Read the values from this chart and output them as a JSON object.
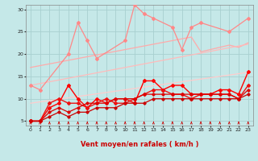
{
  "bg_color": "#c5e8e8",
  "grid_color": "#a8d0d0",
  "xlabel": "Vent moyen/en rafales ( km/h )",
  "xlim": [
    -0.5,
    23.5
  ],
  "ylim": [
    4,
    31
  ],
  "yticks": [
    5,
    10,
    15,
    20,
    25,
    30
  ],
  "xticks": [
    0,
    1,
    2,
    3,
    4,
    5,
    6,
    7,
    8,
    9,
    10,
    11,
    12,
    13,
    14,
    15,
    16,
    17,
    18,
    19,
    20,
    21,
    22,
    23
  ],
  "salmon_wiggly": [
    13,
    12,
    null,
    null,
    20,
    27,
    23,
    19,
    null,
    null,
    23,
    31,
    29,
    28,
    null,
    26,
    21,
    26,
    27,
    null,
    null,
    25,
    null,
    28
  ],
  "trend1": [
    17.0,
    17.4,
    17.8,
    18.2,
    18.6,
    19.0,
    19.4,
    19.8,
    20.2,
    20.6,
    21.0,
    21.4,
    21.8,
    22.2,
    22.6,
    23.0,
    23.4,
    23.8,
    20.5,
    21.0,
    21.5,
    22.0,
    21.5,
    22.5
  ],
  "trend2": [
    13.0,
    13.4,
    13.8,
    14.2,
    14.6,
    15.0,
    15.4,
    15.8,
    16.2,
    16.6,
    17.0,
    17.4,
    17.8,
    18.2,
    18.6,
    19.0,
    19.4,
    19.8,
    20.2,
    20.6,
    21.0,
    21.4,
    21.8,
    22.2
  ],
  "trend3": [
    9.0,
    9.3,
    9.6,
    9.9,
    10.2,
    10.5,
    10.8,
    11.1,
    11.4,
    11.7,
    12.0,
    12.3,
    12.6,
    12.9,
    13.2,
    13.5,
    13.8,
    14.1,
    14.4,
    14.7,
    15.0,
    15.3,
    15.6,
    15.9
  ],
  "red1": [
    5,
    5,
    8,
    9,
    13,
    10,
    8,
    10,
    9,
    10,
    10,
    9,
    14,
    14,
    12,
    13,
    13,
    11,
    11,
    11,
    12,
    12,
    11,
    16
  ],
  "red2": [
    5,
    5,
    9,
    10,
    9,
    9,
    8,
    9,
    10,
    9,
    9,
    10,
    11,
    12,
    12,
    11,
    11,
    10,
    11,
    11,
    11,
    11,
    10,
    13
  ],
  "red3": [
    5,
    5,
    7,
    8,
    7,
    8,
    9,
    9,
    9,
    10,
    10,
    10,
    11,
    11,
    11,
    11,
    11,
    11,
    11,
    11,
    11,
    11,
    10,
    12
  ],
  "red4": [
    5,
    5,
    6,
    7,
    6,
    7,
    7,
    8,
    8,
    8,
    9,
    9,
    9,
    10,
    10,
    10,
    10,
    10,
    10,
    10,
    10,
    10,
    10,
    11
  ],
  "c_salmon_wiggly": "#ff8888",
  "c_trend1": "#ffaaaa",
  "c_trend2": "#ffbbbb",
  "c_trend3": "#ffcccc",
  "c_red1": "#ff0000",
  "c_red2": "#ee1111",
  "c_red3": "#dd0000",
  "c_red4": "#cc0000",
  "c_arrow": "#cc0000",
  "c_xlabel": "#cc0000",
  "xlabel_fontsize": 6.0,
  "tick_fontsize": 4.5
}
